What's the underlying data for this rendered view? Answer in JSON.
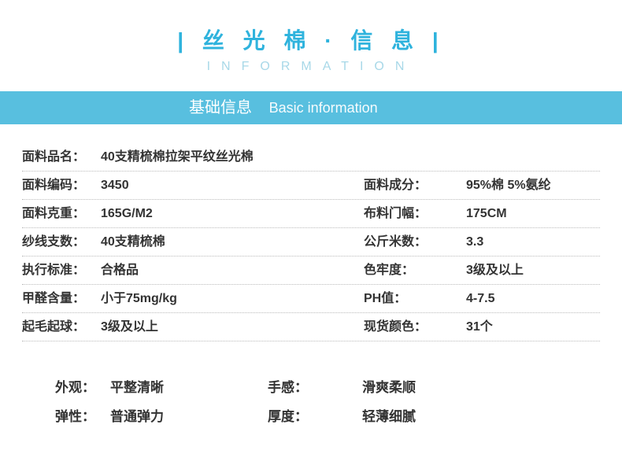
{
  "title": {
    "main": "| 丝 光 棉 · 信 息 |",
    "sub": "INFORMATION",
    "main_color": "#2fb3dd",
    "sub_color": "#a8d8e8"
  },
  "section_bar": {
    "cn": "基础信息",
    "en": "Basic information",
    "bg": "#58bfdf",
    "text_color": "#ffffff"
  },
  "specs": {
    "row1": {
      "l1": "面料品名：",
      "v1": "40支精梳棉拉架平纹丝光棉"
    },
    "row2": {
      "l1": "面料编码：",
      "v1": "3450",
      "l2": "面料成分：",
      "v2": "95%棉 5%氨纶"
    },
    "row3": {
      "l1": "面料克重：",
      "v1": "165G/M2",
      "l2": "布料门幅：",
      "v2": "175CM"
    },
    "row4": {
      "l1": "纱线支数：",
      "v1": "40支精梳棉",
      "l2": "公斤米数：",
      "v2": "3.3"
    },
    "row5": {
      "l1": "执行标准：",
      "v1": "合格品",
      "l2": "色牢度：",
      "v2": "3级及以上"
    },
    "row6": {
      "l1": "甲醛含量：",
      "v1": "小于75mg/kg",
      "l2": "PH值：",
      "v2": "4-7.5"
    },
    "row7": {
      "l1": "起毛起球：",
      "v1": "3级及以上",
      "l2": "现货颜色：",
      "v2": "31个"
    }
  },
  "props": {
    "r1": {
      "l1": "外观：",
      "v1": "平整清晰",
      "l2": "手感：",
      "v2": "滑爽柔顺"
    },
    "r2": {
      "l1": "弹性：",
      "v1": "普通弹力",
      "l2": "厚度：",
      "v2": "轻薄细腻"
    }
  },
  "colors": {
    "text": "#333333",
    "border": "#bbbbbb",
    "background": "#ffffff"
  }
}
